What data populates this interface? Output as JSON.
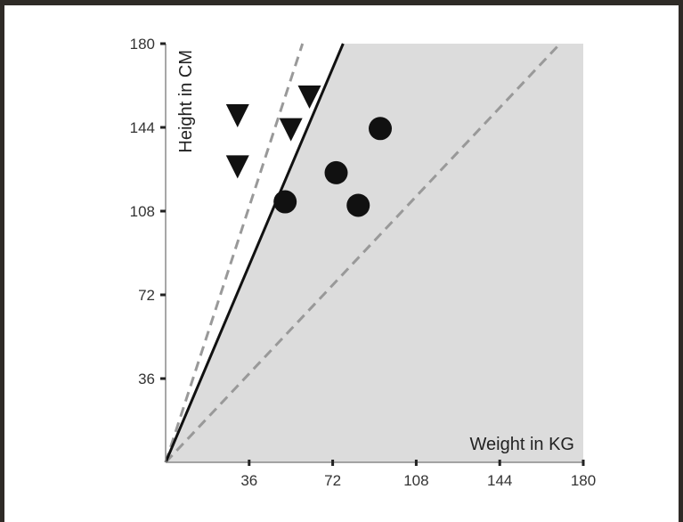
{
  "chart_data": {
    "type": "scatter",
    "xlabel": "Weight in KG",
    "ylabel": "Height in CM",
    "xlim": [
      0,
      180
    ],
    "ylim": [
      0,
      180
    ],
    "xticks": [
      "36",
      "72",
      "108",
      "144",
      "180"
    ],
    "yticks": [
      "36",
      "72",
      "108",
      "144",
      "180"
    ],
    "grid": false,
    "region": {
      "fill": "#dcdcdc",
      "boundary_line": {
        "x": [
          0,
          76.5
        ],
        "y": [
          0,
          180
        ]
      }
    },
    "reference_lines": [
      {
        "style": "dashed",
        "color": "#999999",
        "x": [
          0,
          59
        ],
        "y": [
          0,
          180
        ]
      },
      {
        "style": "dashed",
        "color": "#999999",
        "x": [
          0,
          170
        ],
        "y": [
          0,
          180
        ]
      }
    ],
    "series": [
      {
        "marker": "triangle-down",
        "color": "#111111",
        "points": [
          [
            31,
            149
          ],
          [
            31,
            127
          ],
          [
            54,
            143
          ],
          [
            62,
            157
          ]
        ]
      },
      {
        "marker": "circle",
        "color": "#111111",
        "points": [
          [
            51.5,
            112
          ],
          [
            73.5,
            124.5
          ],
          [
            83,
            110.5
          ],
          [
            92.5,
            143.5
          ]
        ]
      }
    ]
  }
}
